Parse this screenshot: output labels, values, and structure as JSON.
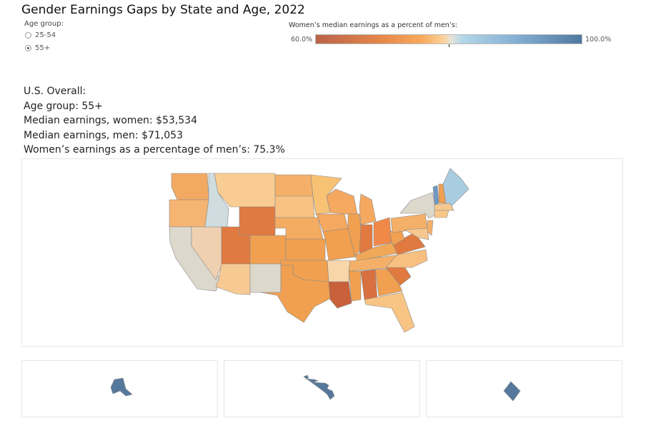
{
  "title": "Gender Earnings Gaps by State and Age, 2022",
  "age_filter": {
    "label": "Age group:",
    "options": [
      {
        "label": "25-54",
        "selected": false
      },
      {
        "label": "55+",
        "selected": true
      }
    ]
  },
  "legend": {
    "title": "Women’s median earnings as a percent  of men’s:",
    "min_label": "60.0%",
    "max_label": "100.0%",
    "min_value": 60,
    "max_value": 100
  },
  "summary": {
    "line1": "U.S. Overall:",
    "line2": "Age group: 55+",
    "line3": "Median earnings, women: $53,534",
    "line4": "Median earnings, men: $71,053",
    "line5": "Women’s earnings as a percentage of men’s: 75.3%"
  },
  "chart_data": {
    "type": "choropleth",
    "title": "Gender Earnings Gaps by State and Age, 2022",
    "color_scale": {
      "min": 60,
      "max": 100,
      "colors": [
        "#b9634a",
        "#f8aa5e",
        "#e6e3d9",
        "#4f78a0"
      ]
    },
    "states": {
      "WA": "#f2aa62",
      "OR": "#f5b472",
      "CA": "#ddd8cc",
      "NV": "#efd0b0",
      "ID": "#cfdde0",
      "MT": "#f8cc92",
      "WY": "#e07a40",
      "UT": "#e07a40",
      "CO": "#f0a050",
      "AZ": "#f7ca94",
      "NM": "#ddd8cc",
      "ND": "#f4b068",
      "SD": "#f8c284",
      "NE": "#f4ac62",
      "KS": "#f0a050",
      "OK": "#f0a050",
      "TX": "#f0a050",
      "MN": "#f8c274",
      "IA": "#f4a860",
      "MO": "#f0a050",
      "AR": "#f8d6aa",
      "LA": "#c8603c",
      "WI": "#f4a860",
      "IL": "#f0a050",
      "MI": "#f4a860",
      "IN": "#e07a40",
      "OH": "#f08848",
      "KY": "#f0a858",
      "TN": "#f4b068",
      "MS": "#f0a050",
      "AL": "#d87040",
      "GA": "#f0a050",
      "FL": "#f8c484",
      "SC": "#e07a40",
      "NC": "#f8c080",
      "VA": "#e07a40",
      "WV": "#f0a050",
      "PA": "#f4b068",
      "NY": "#dcd8cc",
      "NJ": "#f4b068",
      "MD": "#f6c890",
      "VT": "#6f98c0",
      "NH": "#f0a050",
      "ME": "#a8cce0",
      "MA": "#f6c890",
      "CT": "#f8c888",
      "AK": "#56789c",
      "HI": "#56789c",
      "DC": "#56789c"
    }
  }
}
